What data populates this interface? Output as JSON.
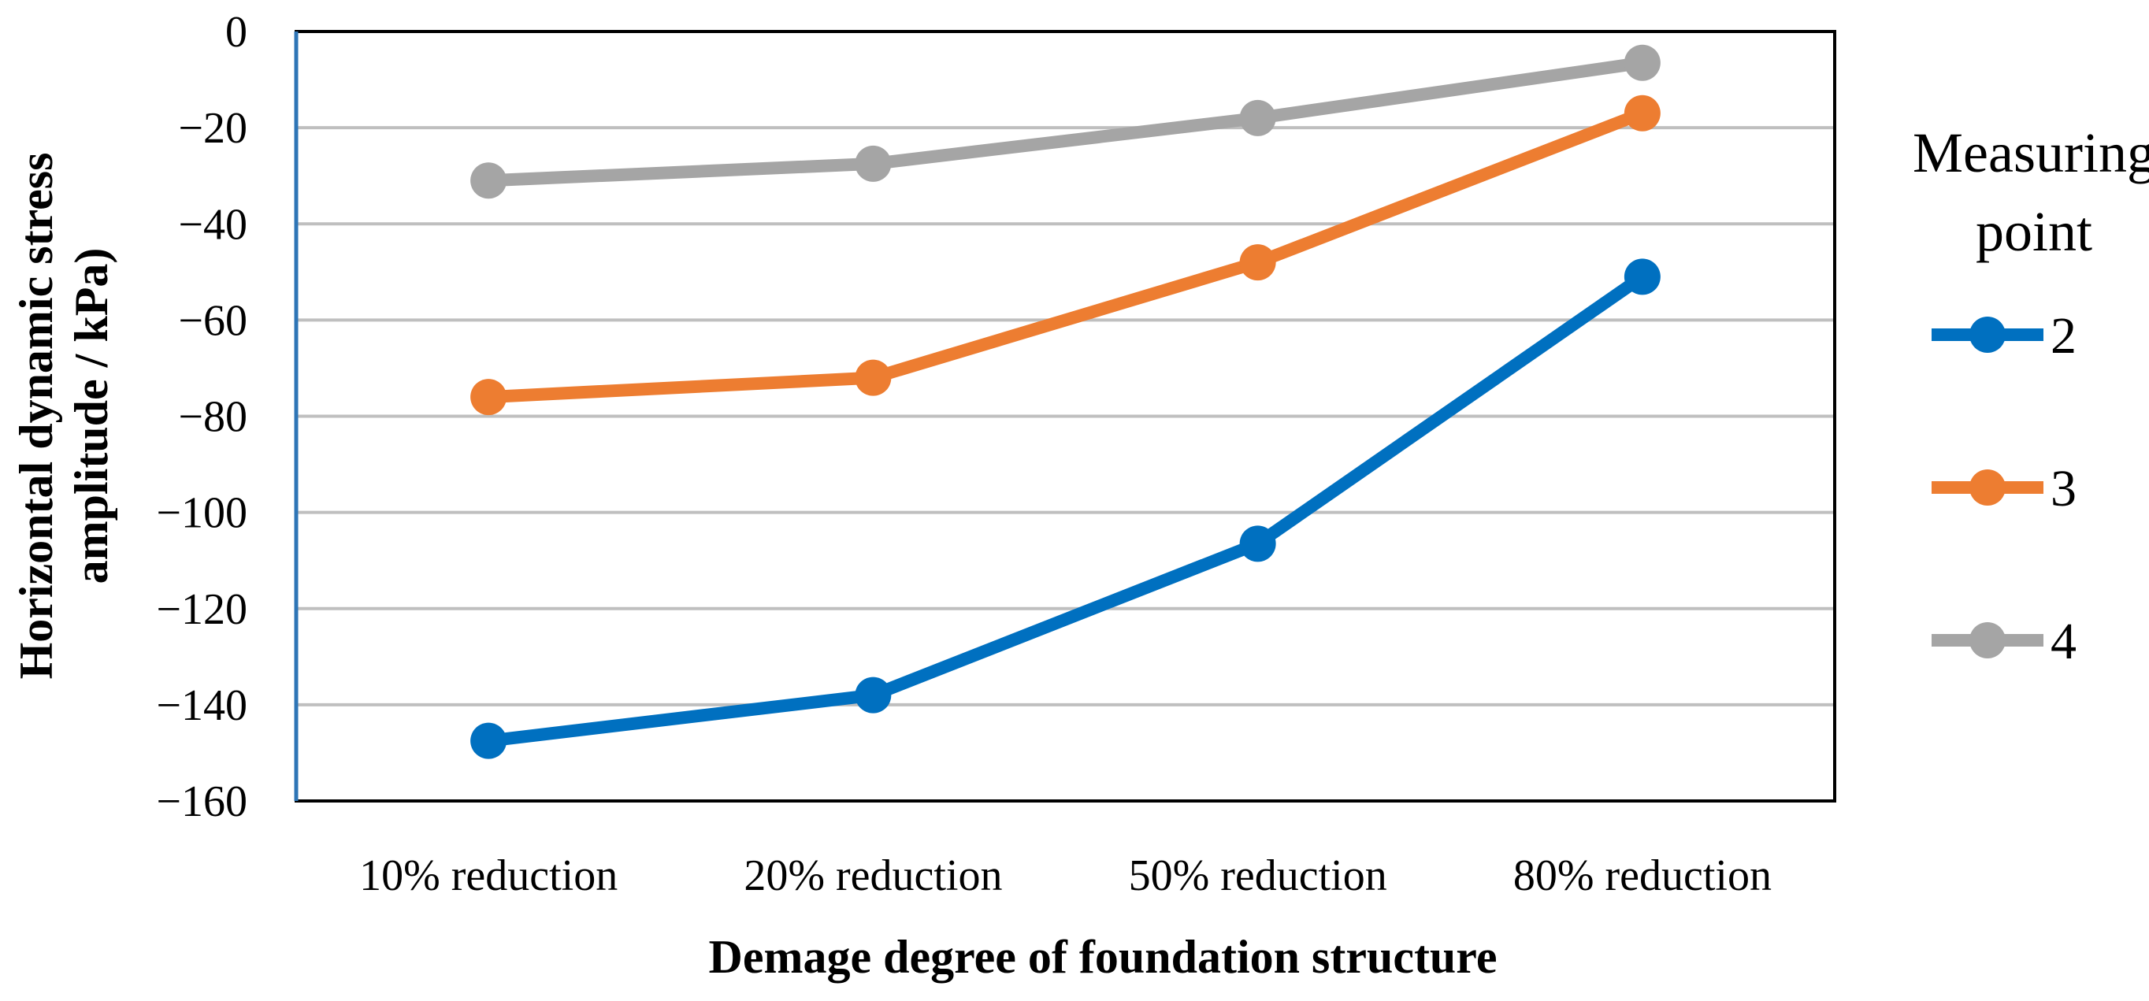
{
  "chart_data": {
    "type": "line",
    "title": "",
    "xlabel": "Demage  degree of foundation structure",
    "ylabel_line1": "Horizontal dynamic stress",
    "ylabel_line2": "amplitude / kPa)",
    "categories": [
      "10% reduction",
      "20% reduction",
      "50% reduction",
      "80% reduction"
    ],
    "ylim": [
      -160,
      0
    ],
    "yticks": [
      0,
      -20,
      -40,
      -60,
      -80,
      -100,
      -120,
      -140,
      -160
    ],
    "ytick_labels": [
      "0",
      "−20",
      "−40",
      "−60",
      "−80",
      "−100",
      "−120",
      "−140",
      "−160"
    ],
    "grid": true,
    "legend_title_line1": "Measuring",
    "legend_title_line2": "point",
    "legend_position": "right",
    "series": [
      {
        "name": "2",
        "color": "#0070C0",
        "values": [
          -147.5,
          -138,
          -106.5,
          -51
        ]
      },
      {
        "name": "3",
        "color": "#ED7D31",
        "values": [
          -76,
          -72,
          -48,
          -17
        ]
      },
      {
        "name": "4",
        "color": "#A5A5A5",
        "values": [
          -31,
          -27.5,
          -18,
          -6.5
        ]
      }
    ]
  }
}
